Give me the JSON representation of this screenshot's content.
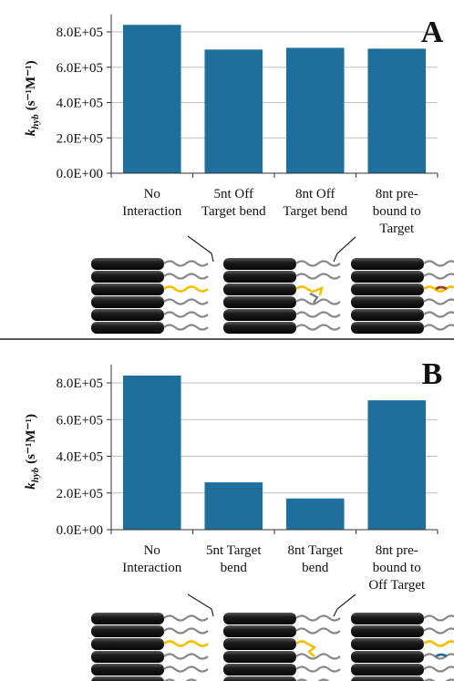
{
  "chart_data": [
    {
      "type": "bar",
      "title": "A",
      "y_label": {
        "symbol": "k",
        "subscript": "hyb",
        "unit": "(s⁻¹M⁻¹)"
      },
      "categories": [
        "No\nInteraction",
        "5nt Off\nTarget bend",
        "8nt Off\nTarget bend",
        "8nt pre-\nbound to\nTarget"
      ],
      "values": [
        840000,
        700000,
        710000,
        705000
      ],
      "color": "#1f6f9c",
      "ylim": [
        0,
        900000
      ],
      "yticks": [
        {
          "value": 0,
          "label": "0.0E+00"
        },
        {
          "value": 200000,
          "label": "2.0E+05"
        },
        {
          "value": 400000,
          "label": "4.0E+05"
        },
        {
          "value": 600000,
          "label": "6.0E+05"
        },
        {
          "value": 800000,
          "label": "8.0E+05"
        }
      ],
      "grid": true
    },
    {
      "type": "bar",
      "title": "B",
      "y_label": {
        "symbol": "k",
        "subscript": "hyb",
        "unit": "(s⁻¹M⁻¹)"
      },
      "categories": [
        "No\nInteraction",
        "5nt Target\nbend",
        "8nt Target\nbend",
        "8nt pre-\nbound to\nOff Target"
      ],
      "values": [
        840000,
        258000,
        170000,
        705000
      ],
      "color": "#1f6f9c",
      "ylim": [
        0,
        900000
      ],
      "yticks": [
        {
          "value": 0,
          "label": "0.0E+00"
        },
        {
          "value": 200000,
          "label": "2.0E+05"
        },
        {
          "value": 400000,
          "label": "4.0E+05"
        },
        {
          "value": 600000,
          "label": "6.0E+05"
        },
        {
          "value": 800000,
          "label": "8.0E+05"
        }
      ],
      "grid": true
    }
  ]
}
